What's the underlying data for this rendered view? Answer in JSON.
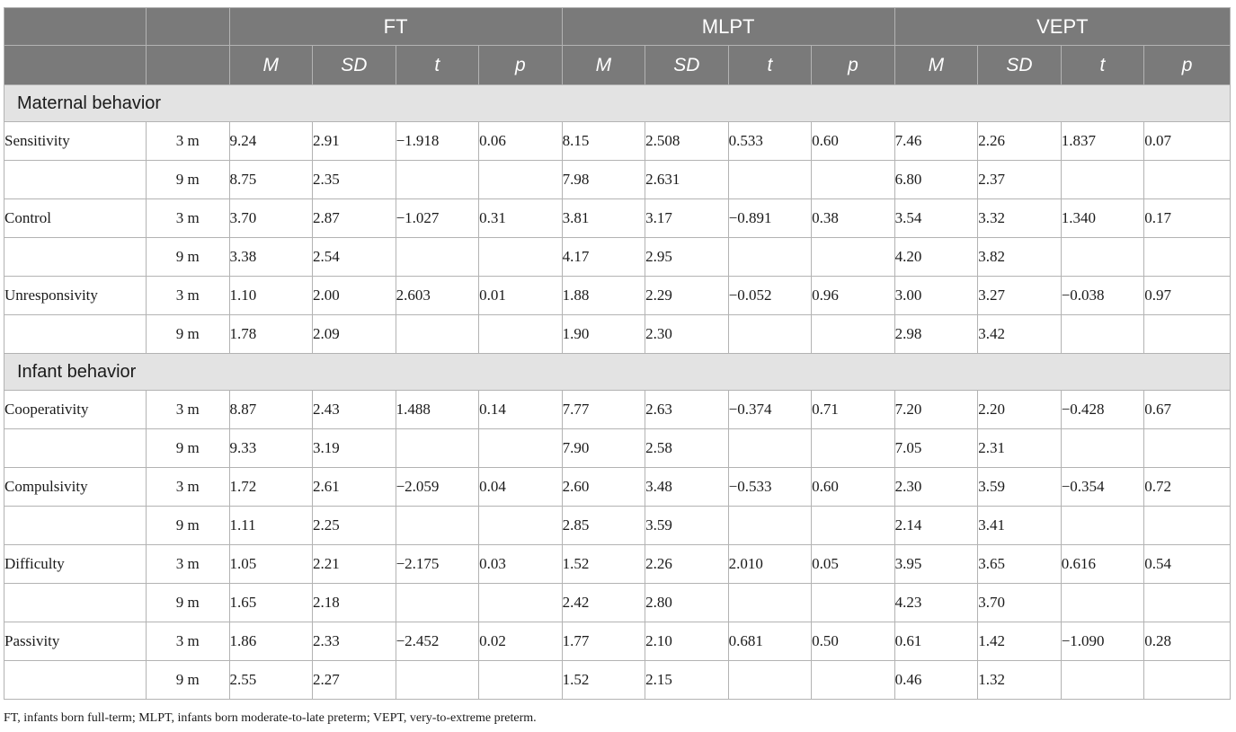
{
  "table": {
    "groups": [
      "FT",
      "MLPT",
      "VEPT"
    ],
    "subheaders": [
      "M",
      "SD",
      "t",
      "p"
    ],
    "sections": [
      {
        "title": "Maternal behavior",
        "rows": [
          {
            "label": "Sensitivity",
            "time": "3 m",
            "cells": [
              "9.24",
              "2.91",
              "−1.918",
              "0.06",
              "8.15",
              "2.508",
              "0.533",
              "0.60",
              "7.46",
              "2.26",
              "1.837",
              "0.07"
            ]
          },
          {
            "label": "",
            "time": "9 m",
            "cells": [
              "8.75",
              "2.35",
              "",
              "",
              "7.98",
              "2.631",
              "",
              "",
              "6.80",
              "2.37",
              "",
              ""
            ]
          },
          {
            "label": "Control",
            "time": "3 m",
            "cells": [
              "3.70",
              "2.87",
              "−1.027",
              "0.31",
              "3.81",
              "3.17",
              "−0.891",
              "0.38",
              "3.54",
              "3.32",
              "1.340",
              "0.17"
            ]
          },
          {
            "label": "",
            "time": "9 m",
            "cells": [
              "3.38",
              "2.54",
              "",
              "",
              "4.17",
              "2.95",
              "",
              "",
              "4.20",
              "3.82",
              "",
              ""
            ]
          },
          {
            "label": "Unresponsivity",
            "time": "3 m",
            "cells": [
              "1.10",
              "2.00",
              "2.603",
              "0.01",
              "1.88",
              "2.29",
              "−0.052",
              "0.96",
              "3.00",
              "3.27",
              "−0.038",
              "0.97"
            ]
          },
          {
            "label": "",
            "time": "9 m",
            "cells": [
              "1.78",
              "2.09",
              "",
              "",
              "1.90",
              "2.30",
              "",
              "",
              "2.98",
              "3.42",
              "",
              ""
            ]
          }
        ]
      },
      {
        "title": "Infant behavior",
        "rows": [
          {
            "label": "Cooperativity",
            "time": "3 m",
            "cells": [
              "8.87",
              "2.43",
              "1.488",
              "0.14",
              "7.77",
              "2.63",
              "−0.374",
              "0.71",
              "7.20",
              "2.20",
              "−0.428",
              "0.67"
            ]
          },
          {
            "label": "",
            "time": "9 m",
            "cells": [
              "9.33",
              "3.19",
              "",
              "",
              "7.90",
              "2.58",
              "",
              "",
              "7.05",
              "2.31",
              "",
              ""
            ]
          },
          {
            "label": "Compulsivity",
            "time": "3 m",
            "cells": [
              "1.72",
              "2.61",
              "−2.059",
              "0.04",
              "2.60",
              "3.48",
              "−0.533",
              "0.60",
              "2.30",
              "3.59",
              "−0.354",
              "0.72"
            ]
          },
          {
            "label": "",
            "time": "9 m",
            "cells": [
              "1.11",
              "2.25",
              "",
              "",
              "2.85",
              "3.59",
              "",
              "",
              "2.14",
              "3.41",
              "",
              ""
            ]
          },
          {
            "label": "Difficulty",
            "time": "3 m",
            "cells": [
              "1.05",
              "2.21",
              "−2.175",
              "0.03",
              "1.52",
              "2.26",
              "2.010",
              "0.05",
              "3.95",
              "3.65",
              "0.616",
              "0.54"
            ]
          },
          {
            "label": "",
            "time": "9 m",
            "cells": [
              "1.65",
              "2.18",
              "",
              "",
              "2.42",
              "2.80",
              "",
              "",
              "4.23",
              "3.70",
              "",
              ""
            ]
          },
          {
            "label": "Passivity",
            "time": "3 m",
            "cells": [
              "1.86",
              "2.33",
              "−2.452",
              "0.02",
              "1.77",
              "2.10",
              "0.681",
              "0.50",
              "0.61",
              "1.42",
              "−1.090",
              "0.28"
            ]
          },
          {
            "label": "",
            "time": "9 m",
            "cells": [
              "2.55",
              "2.27",
              "",
              "",
              "1.52",
              "2.15",
              "",
              "",
              "0.46",
              "1.32",
              "",
              ""
            ]
          }
        ]
      }
    ]
  },
  "footnote": "FT, infants born full-term; MLPT, infants born moderate-to-late preterm; VEPT, very-to-extreme preterm.",
  "colors": {
    "header_bg": "#7a7a7a",
    "section_bg": "#e3e3e3",
    "border": "#b3b3b3"
  }
}
